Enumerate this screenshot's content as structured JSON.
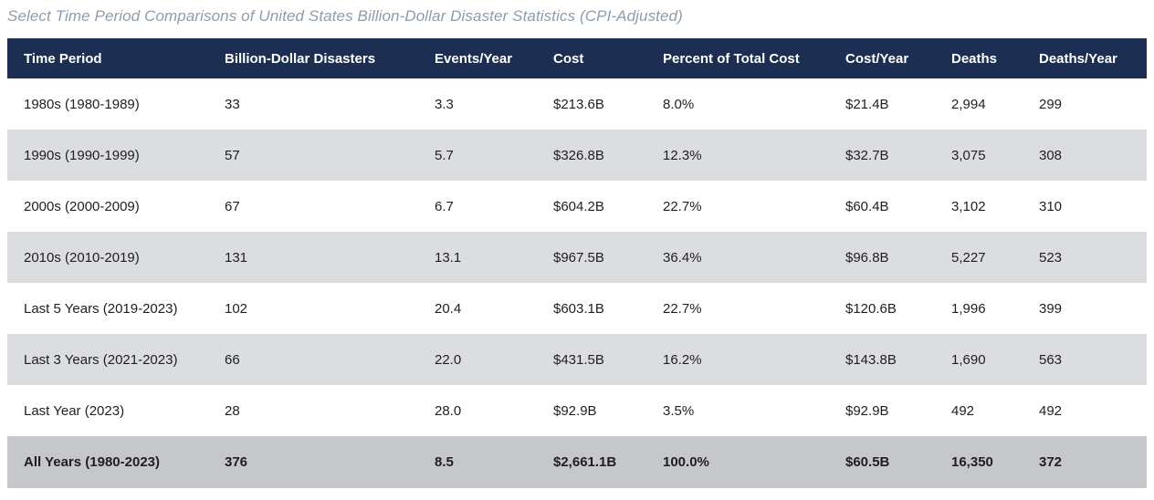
{
  "title": "Select Time Period Comparisons of United States Billion-Dollar Disaster Statistics (CPI-Adjusted)",
  "colors": {
    "header_bg": "#1c2e51",
    "header_text": "#ffffff",
    "stripe_bg": "#dcdde0",
    "total_bg": "#c6c7cb",
    "title_text": "#8e9cac",
    "body_text": "#1f1f1f"
  },
  "table": {
    "columns": [
      "Time Period",
      "Billion-Dollar Disasters",
      "Events/Year",
      "Cost",
      "Percent of Total Cost",
      "Cost/Year",
      "Deaths",
      "Deaths/Year"
    ],
    "rows": [
      {
        "cells": [
          "1980s (1980-1989)",
          "33",
          "3.3",
          "$213.6B",
          "8.0%",
          "$21.4B",
          "2,994",
          "299"
        ],
        "total": false
      },
      {
        "cells": [
          "1990s (1990-1999)",
          "57",
          "5.7",
          "$326.8B",
          "12.3%",
          "$32.7B",
          "3,075",
          "308"
        ],
        "total": false
      },
      {
        "cells": [
          "2000s (2000-2009)",
          "67",
          "6.7",
          "$604.2B",
          "22.7%",
          "$60.4B",
          "3,102",
          "310"
        ],
        "total": false
      },
      {
        "cells": [
          "2010s (2010-2019)",
          "131",
          "13.1",
          "$967.5B",
          "36.4%",
          "$96.8B",
          "5,227",
          "523"
        ],
        "total": false
      },
      {
        "cells": [
          "Last 5 Years (2019-2023)",
          "102",
          "20.4",
          "$603.1B",
          "22.7%",
          "$120.6B",
          "1,996",
          "399"
        ],
        "total": false
      },
      {
        "cells": [
          "Last 3 Years (2021-2023)",
          "66",
          "22.0",
          "$431.5B",
          "16.2%",
          "$143.8B",
          "1,690",
          "563"
        ],
        "total": false
      },
      {
        "cells": [
          "Last Year (2023)",
          "28",
          "28.0",
          "$92.9B",
          "3.5%",
          "$92.9B",
          "492",
          "492"
        ],
        "total": false
      },
      {
        "cells": [
          "All Years (1980-2023)",
          "376",
          "8.5",
          "$2,661.1B",
          "100.0%",
          "$60.5B",
          "16,350",
          "372"
        ],
        "total": true
      }
    ]
  },
  "chart_data": {
    "type": "table",
    "title": "Select Time Period Comparisons of United States Billion-Dollar Disaster Statistics (CPI-Adjusted)",
    "columns": [
      "Time Period",
      "Billion-Dollar Disasters",
      "Events/Year",
      "Cost",
      "Percent of Total Cost",
      "Cost/Year",
      "Deaths",
      "Deaths/Year"
    ],
    "rows": [
      [
        "1980s (1980-1989)",
        33,
        3.3,
        "$213.6B",
        "8.0%",
        "$21.4B",
        2994,
        299
      ],
      [
        "1990s (1990-1999)",
        57,
        5.7,
        "$326.8B",
        "12.3%",
        "$32.7B",
        3075,
        308
      ],
      [
        "2000s (2000-2009)",
        67,
        6.7,
        "$604.2B",
        "22.7%",
        "$60.4B",
        3102,
        310
      ],
      [
        "2010s (2010-2019)",
        131,
        13.1,
        "$967.5B",
        "36.4%",
        "$96.8B",
        5227,
        523
      ],
      [
        "Last 5 Years (2019-2023)",
        102,
        20.4,
        "$603.1B",
        "22.7%",
        "$120.6B",
        1996,
        399
      ],
      [
        "Last 3 Years (2021-2023)",
        66,
        22.0,
        "$431.5B",
        "16.2%",
        "$143.8B",
        1690,
        563
      ],
      [
        "Last Year (2023)",
        28,
        28.0,
        "$92.9B",
        "3.5%",
        "$92.9B",
        492,
        492
      ],
      [
        "All Years (1980-2023)",
        376,
        8.5,
        "$2,661.1B",
        "100.0%",
        "$60.5B",
        16350,
        372
      ]
    ]
  }
}
